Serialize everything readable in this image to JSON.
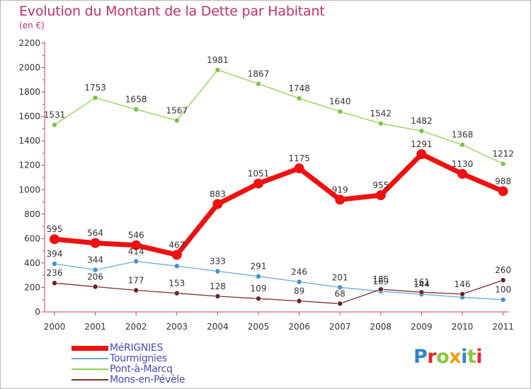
{
  "title": "Evolution du Montant de la Dette par Habitant",
  "unit": "(en €)",
  "logo": {
    "text": "Proxiti",
    "letters": [
      {
        "ch": "P",
        "color": "#2f86c8"
      },
      {
        "ch": "r",
        "color": "#e8262a"
      },
      {
        "ch": "o",
        "color": "#8cc63f"
      },
      {
        "ch": "x",
        "color": "#f39c12"
      },
      {
        "ch": "i",
        "color": "#2f86c8"
      },
      {
        "ch": "t",
        "color": "#8cc63f"
      },
      {
        "ch": "i",
        "color": "#e8262a"
      }
    ]
  },
  "chart_data": {
    "type": "line",
    "title": "Evolution du Montant de la Dette par Habitant",
    "unit": "(en €)",
    "xlabel": "",
    "ylabel": "",
    "ylim": [
      0,
      2200
    ],
    "yticks": [
      0,
      200,
      400,
      600,
      800,
      1000,
      1200,
      1400,
      1600,
      1800,
      2000,
      2200
    ],
    "categories": [
      "2000",
      "2001",
      "2002",
      "2003",
      "2004",
      "2005",
      "2006",
      "2007",
      "2008",
      "2009",
      "2010",
      "2011"
    ],
    "grid": false,
    "legend_position": "bottom-left",
    "series": [
      {
        "name": "Pont-à-Marcq",
        "color": "#8fd14f",
        "dot": "#7cc242",
        "width": 1.3,
        "marker": 3.5,
        "values": [
          1531,
          1753,
          1658,
          1567,
          1981,
          1867,
          1748,
          1640,
          1542,
          1482,
          1368,
          1212
        ],
        "labels": [
          "1531",
          "1753",
          "1658",
          "1567",
          "1981",
          "1867",
          "1748",
          "1640",
          "1542",
          "1482",
          "1368",
          "1212"
        ]
      },
      {
        "name": "Tourmignies",
        "color": "#6da7d4",
        "dot": "#3f8fd0",
        "width": 1.3,
        "marker": 3.5,
        "values": [
          394,
          344,
          414,
          375,
          333,
          291,
          246,
          201,
          169,
          144,
          120,
          100
        ],
        "labels": [
          "394",
          "344",
          "414",
          "",
          "333",
          "291",
          "246",
          "201",
          "169",
          "144",
          "",
          "100"
        ]
      },
      {
        "name": "Mons-en-Pévèle",
        "color": "#7a2e2e",
        "dot": "#6a2222",
        "width": 1.3,
        "marker": 3.5,
        "values": [
          236,
          206,
          177,
          153,
          128,
          109,
          89,
          68,
          185,
          161,
          146,
          260
        ],
        "labels": [
          "236",
          "206",
          "177",
          "153",
          "128",
          "109",
          "89",
          "68",
          "185",
          "161",
          "146",
          "260"
        ]
      },
      {
        "name": "MéRIGNIES",
        "color": "#ee1111",
        "dot": "#ee1111",
        "width": 7,
        "marker": 7,
        "values": [
          595,
          564,
          546,
          467,
          883,
          1051,
          1175,
          919,
          955,
          1291,
          1130,
          988
        ],
        "labels": [
          "595",
          "564",
          "546",
          "467",
          "883",
          "1051",
          "1175",
          "919",
          "955",
          "1291",
          "1130",
          "988"
        ]
      }
    ],
    "legend": [
      {
        "name": "MéRIGNIES",
        "color": "#ee1111",
        "thick": 7
      },
      {
        "name": "Tourmignies",
        "color": "#6da7d4",
        "thick": 2
      },
      {
        "name": "Pont-à-Marcq",
        "color": "#8fd14f",
        "thick": 2
      },
      {
        "name": "Mons-en-Pévèle",
        "color": "#7a2e2e",
        "thick": 2
      }
    ]
  }
}
